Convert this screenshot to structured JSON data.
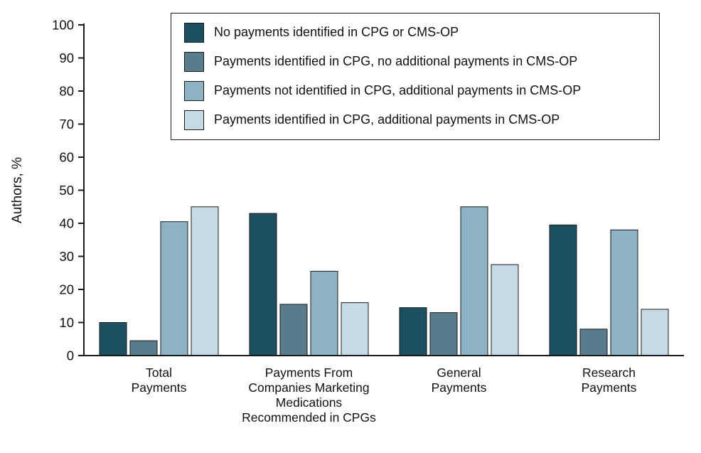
{
  "chart_data": {
    "type": "bar",
    "title": "",
    "xlabel": "",
    "ylabel": "Authors, %",
    "ylim": [
      0,
      100
    ],
    "ytick_step": 10,
    "grid": false,
    "legend_position": "top-inside",
    "categories": [
      [
        "Total",
        "Payments"
      ],
      [
        "Payments From",
        "Companies Marketing",
        "Medications",
        "Recommended in CPGs"
      ],
      [
        "General",
        "Payments"
      ],
      [
        "Research",
        "Payments"
      ]
    ],
    "series": [
      {
        "name": "No payments identified in CPG or CMS-OP",
        "color": "#1d4f63",
        "values": [
          10,
          43,
          14.5,
          39.5
        ]
      },
      {
        "name": "Payments identified in CPG, no additional payments in CMS-OP",
        "color": "#587c8c",
        "values": [
          4.5,
          15.5,
          13,
          8
        ]
      },
      {
        "name": "Payments not identified in CPG, additional payments in CMS-OP",
        "color": "#8db2c3",
        "values": [
          40.5,
          25.5,
          45,
          38
        ]
      },
      {
        "name": "Payments identified in CPG, additional payments in CMS-OP",
        "color": "#c6dae6",
        "values": [
          45,
          16,
          27.5,
          14
        ]
      }
    ],
    "axis_color": "#1a1a1a",
    "bar_outline_color": "#1a1a1a"
  }
}
